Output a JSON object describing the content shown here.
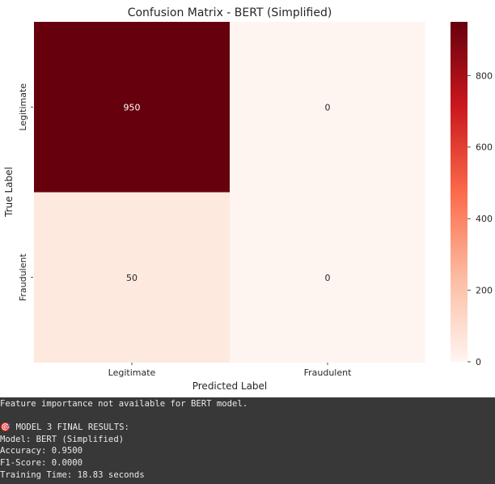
{
  "chart_data": {
    "type": "heatmap",
    "title": "Confusion Matrix - BERT (Simplified)",
    "xlabel": "Predicted Label",
    "ylabel": "True Label",
    "x_categories": [
      "Legitimate",
      "Fraudulent"
    ],
    "y_categories": [
      "Legitimate",
      "Fraudulent"
    ],
    "values": [
      [
        950,
        0
      ],
      [
        50,
        0
      ]
    ],
    "colormap": "Reds",
    "colorbar": {
      "min": 0,
      "max": 950,
      "ticks": [
        0,
        200,
        400,
        600,
        800
      ]
    }
  },
  "colors": {
    "cmap_low": "#fff5f0",
    "cmap_mid1": "#fcbba1",
    "cmap_mid2": "#fb6a4a",
    "cmap_mid3": "#cb181d",
    "cmap_high": "#67000d",
    "console_bg": "#383838",
    "console_text": "#eaeaea"
  },
  "console": {
    "lines": [
      "Feature importance not available for BERT model.",
      "",
      "🎯 MODEL 3 FINAL RESULTS:",
      "Model: BERT (Simplified)",
      "Accuracy: 0.9500",
      "F1-Score: 0.0000",
      "Training Time: 18.83 seconds"
    ]
  }
}
